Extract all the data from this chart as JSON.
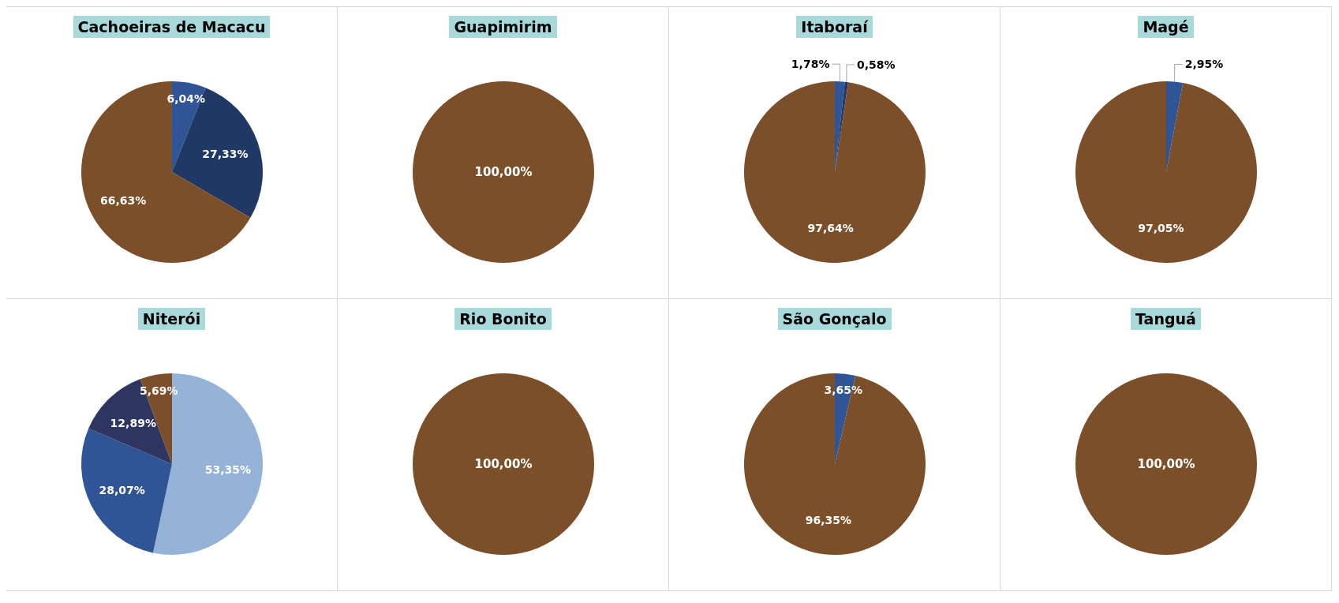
{
  "chart_data": [
    {
      "type": "pie",
      "title": "Cachoeiras de Macacu",
      "categories": [
        null,
        null,
        null
      ],
      "values": [
        6.04,
        27.33,
        66.63
      ],
      "colors": [
        "#2f5597",
        "#1f3864",
        "#7b4f2a"
      ],
      "value_labels": [
        "6,04%",
        "27,33%",
        "66,63%"
      ]
    },
    {
      "type": "pie",
      "title": "Guapimirim",
      "categories": [
        null
      ],
      "values": [
        100
      ],
      "colors": [
        "#7b4f2a"
      ],
      "value_labels": [
        "100,00%"
      ]
    },
    {
      "type": "pie",
      "title": "Itaboraí",
      "categories": [
        null,
        null,
        null
      ],
      "values": [
        1.78,
        0.58,
        97.64
      ],
      "colors": [
        "#2f5597",
        "#1f3864",
        "#7b4f2a"
      ],
      "value_labels": [
        "1,78%",
        "0,58%",
        "97,64%"
      ]
    },
    {
      "type": "pie",
      "title": "Magé",
      "categories": [
        null,
        null
      ],
      "values": [
        2.95,
        97.05
      ],
      "colors": [
        "#2f5597",
        "#7b4f2a"
      ],
      "value_labels": [
        "2,95%",
        "97,05%"
      ]
    },
    {
      "type": "pie",
      "title": "Niterói",
      "categories": [
        null,
        null,
        null,
        null
      ],
      "values": [
        53.35,
        28.07,
        12.89,
        5.69
      ],
      "colors": [
        "#95b3d7",
        "#2f5597",
        "#2e3560",
        "#7b4f2a"
      ],
      "value_labels": [
        "53,35%",
        "28,07%",
        "12,89%",
        "5,69%"
      ]
    },
    {
      "type": "pie",
      "title": "Rio Bonito",
      "categories": [
        null
      ],
      "values": [
        100
      ],
      "colors": [
        "#7b4f2a"
      ],
      "value_labels": [
        "100,00%"
      ]
    },
    {
      "type": "pie",
      "title": "São Gonçalo",
      "categories": [
        null,
        null
      ],
      "values": [
        3.65,
        96.35
      ],
      "colors": [
        "#2f5597",
        "#7b4f2a"
      ],
      "value_labels": [
        "3,65%",
        "96,35%"
      ]
    },
    {
      "type": "pie",
      "title": "Tanguá",
      "categories": [
        null
      ],
      "values": [
        100
      ],
      "colors": [
        "#7b4f2a"
      ],
      "value_labels": [
        "100,00%"
      ]
    }
  ]
}
